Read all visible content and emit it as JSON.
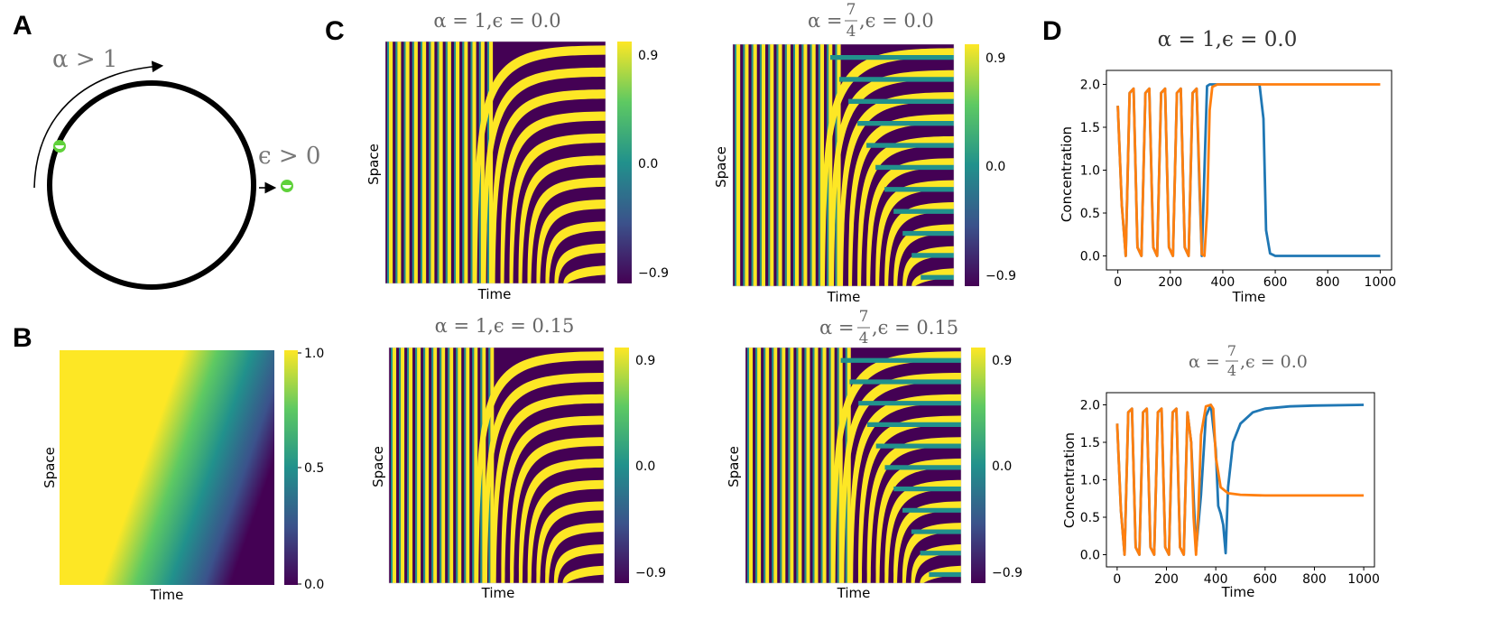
{
  "panels": {
    "A": {
      "label": "A",
      "arc_annotation": "α > 1",
      "side_annotation": "ϵ > 0",
      "colors": {
        "circle": "#000000",
        "marker": "#5fd13a"
      }
    },
    "B": {
      "label": "B",
      "xlabel": "Time",
      "ylabel": "Space",
      "colorbar_ticks": [
        "1.0",
        "0.5",
        "0.0"
      ]
    },
    "C": {
      "label": "C",
      "plots": [
        {
          "title": "α = 1,ϵ = 0.0",
          "xlabel": "Time",
          "ylabel": "Space",
          "cbar": [
            "0.9",
            "0.0",
            "−0.9"
          ],
          "alpha": 1,
          "eps": 0.0
        },
        {
          "title_prefix": "α =",
          "frac_num": "7",
          "frac_den": "4",
          "title_suffix": ",ϵ = 0.0",
          "xlabel": "Time",
          "ylabel": "Space",
          "cbar": [
            "0.9",
            "0.0",
            "−0.9"
          ],
          "alpha": 1.75,
          "eps": 0.0
        },
        {
          "title": "α = 1,ϵ = 0.15",
          "xlabel": "Time",
          "ylabel": "Space",
          "cbar": [
            "0.9",
            "0.0",
            "−0.9"
          ],
          "alpha": 1,
          "eps": 0.15
        },
        {
          "title_prefix": "α =",
          "frac_num": "7",
          "frac_den": "4",
          "title_suffix": ",ϵ = 0.15",
          "xlabel": "Time",
          "ylabel": "Space",
          "cbar": [
            "0.9",
            "0.0",
            "−0.9"
          ],
          "alpha": 1.75,
          "eps": 0.15
        }
      ]
    },
    "D": {
      "label": "D",
      "plots": [
        {
          "title": "α = 1,ϵ = 0.0",
          "xlabel": "Time",
          "ylabel": "Concentration"
        },
        {
          "title_prefix": "α =",
          "frac_num": "7",
          "frac_den": "4",
          "title_suffix": ",ϵ = 0.0",
          "xlabel": "Time",
          "ylabel": "Concentration"
        }
      ]
    }
  },
  "chart_data": [
    {
      "type": "line",
      "panel": "D-top",
      "title": "α = 1,ϵ = 0.0",
      "xlabel": "Time",
      "ylabel": "Concentration",
      "xlim": [
        0,
        1000
      ],
      "ylim": [
        0,
        2.0
      ],
      "xticks": [
        0,
        200,
        400,
        600,
        800,
        1000
      ],
      "yticks": [
        0.0,
        0.5,
        1.0,
        1.5,
        2.0
      ],
      "series": [
        {
          "color": "#1f77b4",
          "x": [
            0,
            15,
            30,
            45,
            60,
            75,
            90,
            105,
            120,
            135,
            150,
            165,
            180,
            195,
            210,
            225,
            240,
            255,
            270,
            285,
            300,
            310,
            320,
            330,
            340,
            350,
            400,
            500,
            540,
            555,
            565,
            580,
            600,
            800,
            1000
          ],
          "values": [
            1.75,
            0.6,
            0.0,
            1.9,
            1.95,
            0.1,
            0.0,
            1.9,
            1.95,
            0.1,
            0.0,
            1.9,
            1.95,
            0.1,
            0.0,
            1.9,
            1.95,
            0.1,
            0.0,
            1.9,
            1.95,
            0.9,
            0.0,
            1.0,
            1.98,
            2.0,
            2.0,
            2.0,
            2.0,
            1.6,
            0.3,
            0.03,
            0.0,
            0.0,
            0.0
          ]
        },
        {
          "color": "#ff7f0e",
          "x": [
            0,
            15,
            30,
            45,
            60,
            75,
            90,
            105,
            120,
            135,
            150,
            165,
            180,
            195,
            210,
            225,
            240,
            255,
            270,
            285,
            300,
            310,
            320,
            330,
            340,
            350,
            360,
            380,
            400,
            500,
            600,
            800,
            1000
          ],
          "values": [
            1.75,
            0.6,
            0.0,
            1.9,
            1.95,
            0.1,
            0.0,
            1.9,
            1.95,
            0.1,
            0.0,
            1.9,
            1.95,
            0.1,
            0.0,
            1.9,
            1.95,
            0.1,
            0.0,
            1.9,
            1.95,
            1.0,
            0.02,
            0.0,
            0.5,
            1.7,
            1.97,
            2.0,
            2.0,
            2.0,
            2.0,
            2.0,
            2.0
          ]
        }
      ]
    },
    {
      "type": "line",
      "panel": "D-bottom",
      "title": "α = 7/4,ϵ = 0.0",
      "xlabel": "Time",
      "ylabel": "Concentration",
      "xlim": [
        0,
        1000
      ],
      "ylim": [
        0,
        2.0
      ],
      "xticks": [
        0,
        200,
        400,
        600,
        800,
        1000
      ],
      "yticks": [
        0.0,
        0.5,
        1.0,
        1.5,
        2.0
      ],
      "series": [
        {
          "color": "#1f77b4",
          "x": [
            0,
            15,
            30,
            45,
            60,
            75,
            90,
            105,
            120,
            135,
            150,
            165,
            180,
            195,
            210,
            225,
            240,
            255,
            270,
            285,
            300,
            320,
            340,
            360,
            380,
            400,
            410,
            420,
            430,
            440,
            450,
            470,
            500,
            550,
            600,
            700,
            800,
            1000
          ],
          "values": [
            1.75,
            0.6,
            0.0,
            1.9,
            1.95,
            0.1,
            0.0,
            1.9,
            1.95,
            0.1,
            0.0,
            1.9,
            1.95,
            0.1,
            0.0,
            1.9,
            1.95,
            0.1,
            0.0,
            1.9,
            1.5,
            0.05,
            0.8,
            1.85,
            2.0,
            1.4,
            0.65,
            0.55,
            0.4,
            0.02,
            0.9,
            1.5,
            1.75,
            1.9,
            1.95,
            1.98,
            1.99,
            2.0
          ]
        },
        {
          "color": "#ff7f0e",
          "x": [
            0,
            15,
            30,
            45,
            60,
            75,
            90,
            105,
            120,
            135,
            150,
            165,
            180,
            195,
            210,
            225,
            240,
            255,
            270,
            285,
            300,
            310,
            320,
            330,
            340,
            360,
            380,
            390,
            400,
            420,
            450,
            500,
            600,
            1000
          ],
          "values": [
            1.75,
            0.6,
            0.0,
            1.9,
            1.95,
            0.1,
            0.0,
            1.9,
            1.95,
            0.1,
            0.0,
            1.9,
            1.95,
            0.1,
            0.0,
            1.9,
            1.95,
            0.1,
            0.0,
            1.9,
            1.5,
            0.5,
            0.0,
            0.6,
            1.6,
            1.98,
            2.0,
            1.95,
            1.3,
            0.9,
            0.82,
            0.8,
            0.79,
            0.79
          ]
        }
      ]
    }
  ]
}
